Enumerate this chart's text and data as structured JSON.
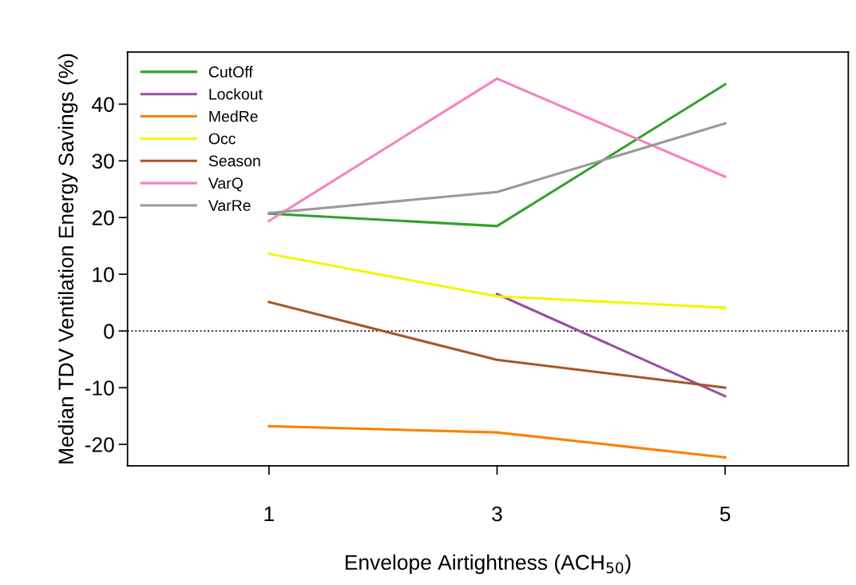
{
  "chart_data": {
    "type": "line",
    "xlabel": "Envelope Airtightness (ACH$_{50}$)",
    "ylabel": "Median TDV Ventilation Energy Savings (%)",
    "x": [
      1,
      3,
      5
    ],
    "series": [
      {
        "name": "CutOff",
        "color": "#33a02c",
        "values": [
          20.7,
          18.5,
          43.5
        ]
      },
      {
        "name": "Lockout",
        "color": "#984ea3",
        "values": [
          null,
          6.5,
          -11.5
        ]
      },
      {
        "name": "MedRe",
        "color": "#ff7f00",
        "values": [
          -16.8,
          -17.9,
          -22.3
        ]
      },
      {
        "name": "Occ",
        "color": "#f5f500",
        "values": [
          13.6,
          6.1,
          4.1
        ]
      },
      {
        "name": "Season",
        "color": "#a65628",
        "values": [
          5.1,
          -5.1,
          -10
        ]
      },
      {
        "name": "VarQ",
        "color": "#f781bf",
        "values": [
          19.4,
          44.5,
          27.2
        ]
      },
      {
        "name": "VarRe",
        "color": "#999999",
        "values": [
          20.8,
          24.5,
          36.6
        ]
      }
    ],
    "xlim": [
      -0.24,
      6.08
    ],
    "ylim": [
      -23.8,
      49.2
    ],
    "xticks": [
      1,
      3,
      5
    ],
    "yticks": [
      -20,
      -10,
      0,
      10,
      20,
      30,
      40
    ],
    "ref_lines": [
      {
        "axis": "y",
        "value": 0,
        "color": "#000000",
        "line_style": "dotted"
      }
    ],
    "grid": false,
    "legend": "top left",
    "marker": "none",
    "line_style": "solid"
  }
}
